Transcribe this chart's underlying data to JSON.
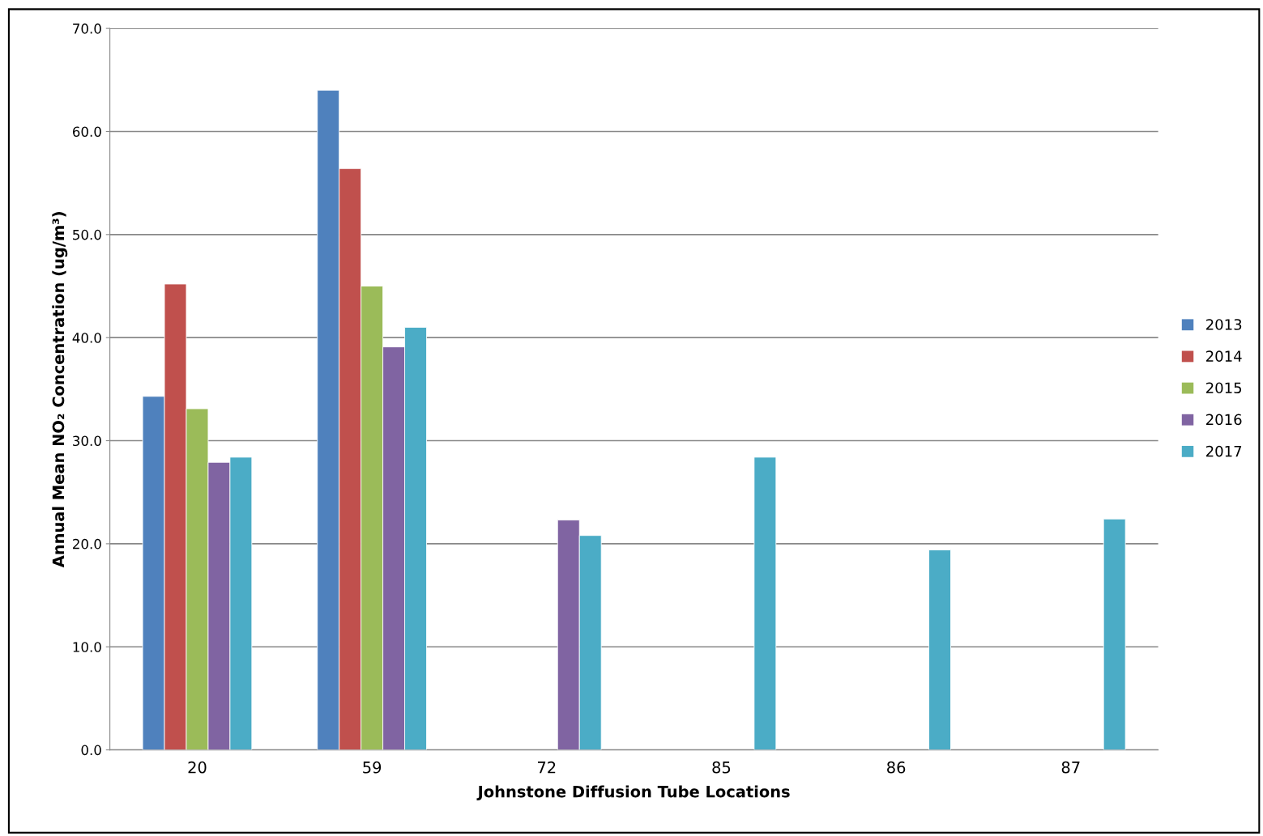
{
  "chart_data": {
    "type": "bar",
    "xlabel": "Johnstone Diffusion Tube Locations",
    "ylabel": "Annual Mean NO₂ Concentration (ug/m³)",
    "categories": [
      "20",
      "59",
      "72",
      "85",
      "86",
      "87"
    ],
    "series": [
      {
        "name": "2013",
        "color": "#4f81bd",
        "values": [
          34.3,
          64.0,
          null,
          null,
          null,
          null
        ]
      },
      {
        "name": "2014",
        "color": "#c0504d",
        "values": [
          45.2,
          56.4,
          null,
          null,
          null,
          null
        ]
      },
      {
        "name": "2015",
        "color": "#9bbb59",
        "values": [
          33.1,
          45.0,
          null,
          null,
          null,
          null
        ]
      },
      {
        "name": "2016",
        "color": "#8064a2",
        "values": [
          27.9,
          39.1,
          22.3,
          null,
          null,
          null
        ]
      },
      {
        "name": "2017",
        "color": "#4bacc6",
        "values": [
          28.4,
          41.0,
          20.8,
          28.4,
          19.4,
          22.4
        ]
      }
    ],
    "ylim": [
      0,
      70
    ],
    "yticks": [
      {
        "value": 0,
        "label": "0.0"
      },
      {
        "value": 10,
        "label": "10.0"
      },
      {
        "value": 20,
        "label": "20.0"
      },
      {
        "value": 30,
        "label": "30.0"
      },
      {
        "value": 40,
        "label": "40.0"
      },
      {
        "value": 50,
        "label": "50.0"
      },
      {
        "value": 60,
        "label": "60.0"
      },
      {
        "value": 70,
        "label": "70.0"
      }
    ],
    "grid": "y",
    "legend": "right"
  }
}
